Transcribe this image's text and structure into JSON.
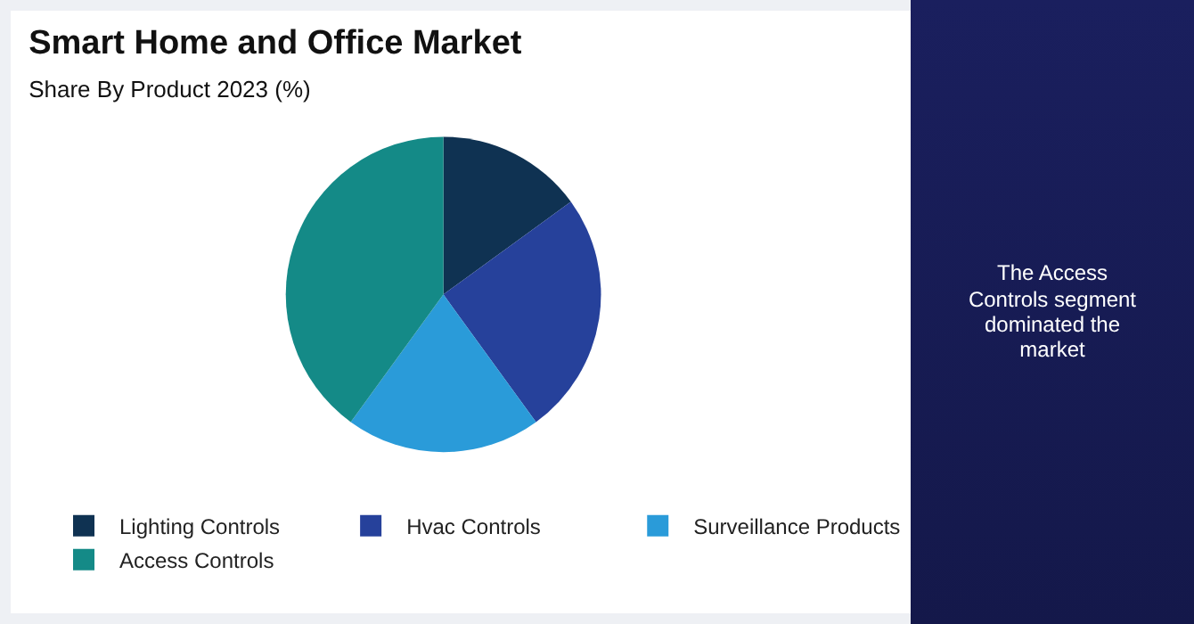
{
  "chart_data": {
    "type": "pie",
    "title": "Smart Home and Office Market",
    "subtitle": "Share By Product 2023 (%)",
    "categories": [
      "Lighting Controls",
      "Hvac Controls",
      "Surveillance Products",
      "Access Controls"
    ],
    "values": [
      15,
      25,
      20,
      40
    ],
    "colors": [
      "#0f3252",
      "#26419b",
      "#2a9bd9",
      "#148a87"
    ],
    "legend": "bottom",
    "annotations": [
      "The Access Controls segment dominated the market"
    ]
  }
}
